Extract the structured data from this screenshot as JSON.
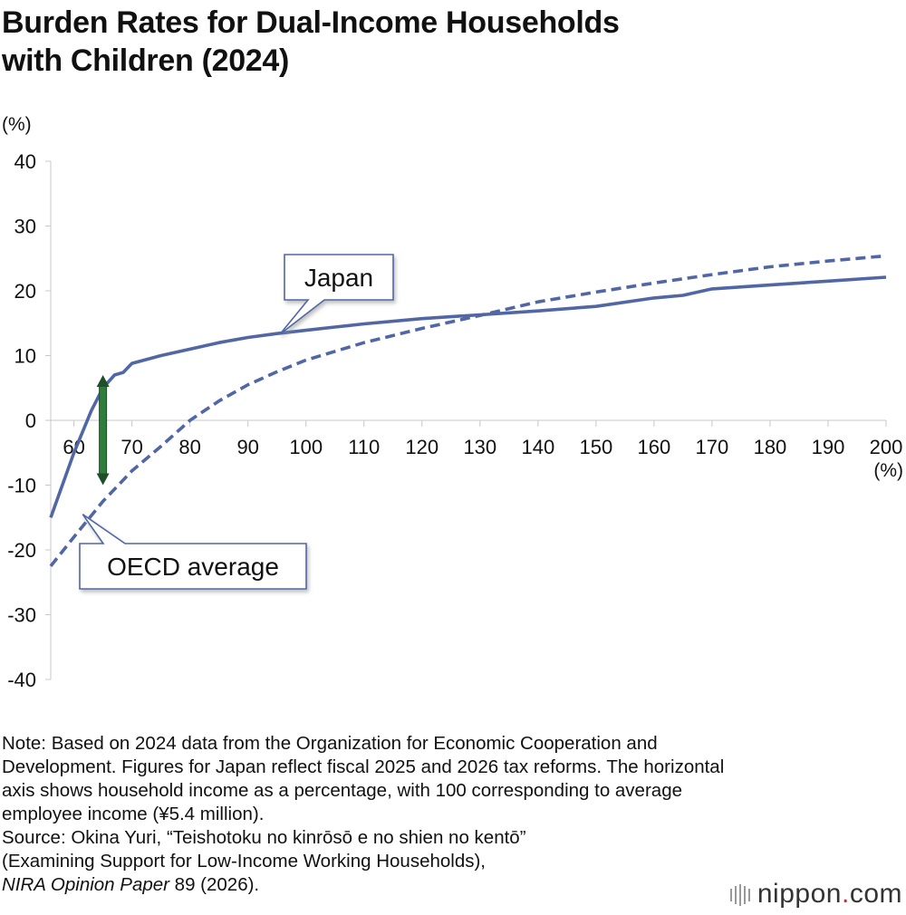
{
  "title_lines": [
    "Burden Rates for Dual-Income Households",
    "with Children (2024)"
  ],
  "chart_data": {
    "type": "line",
    "ylabel": "(%)",
    "xlabel": "(%)",
    "ylim": [
      -40,
      40
    ],
    "yticks": [
      40,
      30,
      20,
      10,
      0,
      -10,
      -20,
      -30,
      -40
    ],
    "xlim": [
      56,
      200
    ],
    "xticks": [
      60,
      70,
      80,
      90,
      100,
      110,
      120,
      130,
      140,
      150,
      160,
      170,
      180,
      190,
      200
    ],
    "series": [
      {
        "name": "Japan",
        "style": "solid",
        "color": "#5166a5",
        "x": [
          56,
          60,
          63,
          65,
          67,
          68.5,
          70,
          75,
          80,
          85,
          90,
          95,
          100,
          105,
          110,
          120,
          130,
          140,
          150,
          160,
          165,
          170,
          180,
          190,
          200
        ],
        "y": [
          -15,
          -5,
          1.5,
          5,
          7,
          7.4,
          8.8,
          10,
          11,
          12,
          12.8,
          13.4,
          13.9,
          14.4,
          14.9,
          15.7,
          16.3,
          16.9,
          17.6,
          18.9,
          19.3,
          20.3,
          20.9,
          21.5,
          22.1
        ]
      },
      {
        "name": "OECD average",
        "style": "dashed",
        "color": "#5166a5",
        "x": [
          56,
          60,
          65,
          70,
          75,
          80,
          85,
          90,
          95,
          100,
          110,
          120,
          130,
          140,
          150,
          160,
          170,
          180,
          190,
          200
        ],
        "y": [
          -22.5,
          -18,
          -12.5,
          -7.8,
          -4,
          0,
          3,
          5.5,
          7.5,
          9.3,
          12,
          14.2,
          16.2,
          18.3,
          19.8,
          21.2,
          22.5,
          23.7,
          24.6,
          25.4
        ]
      }
    ],
    "annotations": {
      "japan_label": "Japan",
      "oecd_label": "OECD average",
      "gap_arrow": {
        "x": 65,
        "from": -10,
        "to": 7,
        "color": "#2f7d3a"
      }
    }
  },
  "note_lines": [
    "Note: Based on 2024 data from the Organization for Economic Cooperation and",
    "Development. Figures for Japan reflect fiscal 2025 and 2026 tax reforms. The horizontal",
    "axis shows household income as a percentage, with 100 corresponding to average",
    "employee income (¥5.4 million).",
    "Source: Okina Yuri, “Teishotoku no kinrōsō e no shien no kentō”",
    "(Examining Support for Low-Income Working Households),"
  ],
  "note_last_italic": "NIRA Opinion Paper",
  "note_last_rest": " 89 (2026).",
  "logo": {
    "main": "nippon",
    "dot": ".",
    "tld": "com"
  }
}
